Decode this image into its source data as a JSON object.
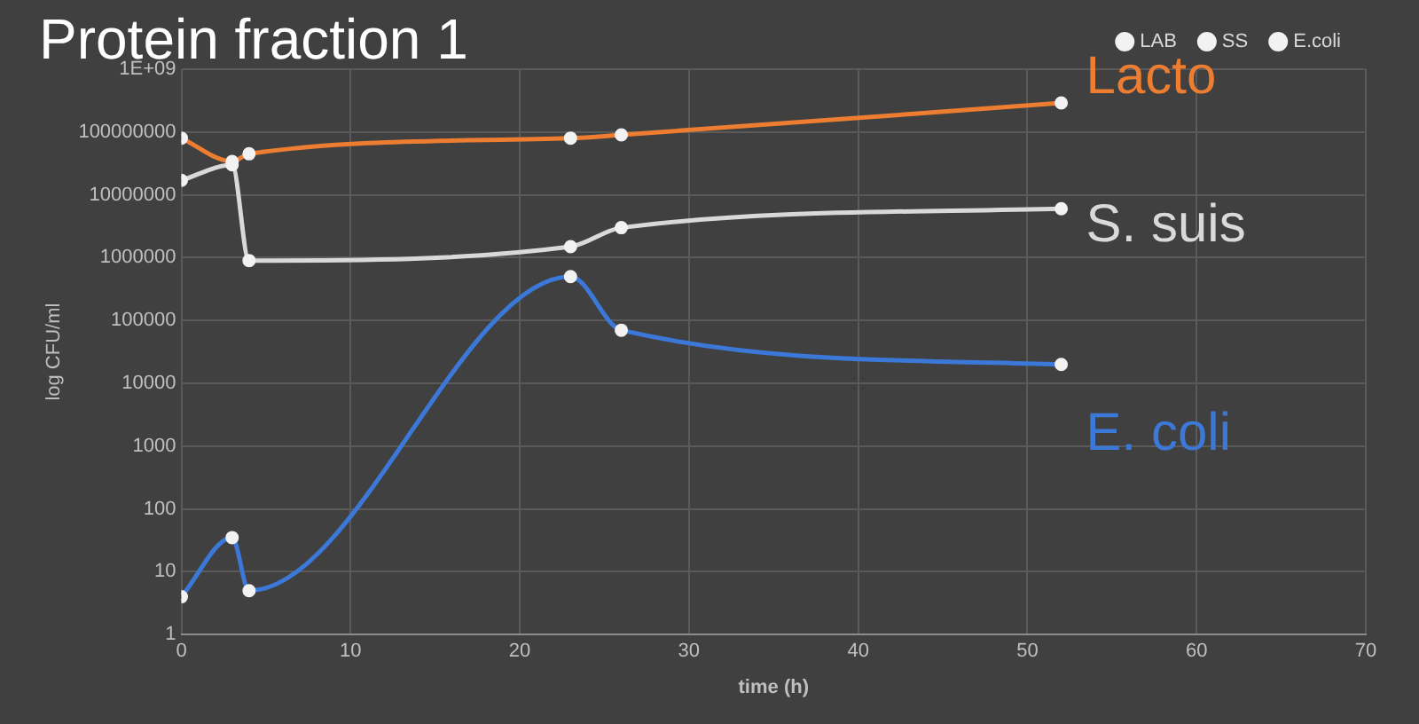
{
  "chart_data": {
    "type": "line",
    "title": "Protein fraction 1",
    "xlabel": "time (h)",
    "ylabel": "log CFU/ml",
    "x": [
      0,
      3,
      4,
      23,
      26,
      52
    ],
    "series": [
      {
        "name": "E.coli",
        "color": "#3c78d8",
        "values": [
          4,
          35,
          5,
          500000,
          70000,
          20000
        ]
      },
      {
        "name": "SS",
        "color": "#d9d9d9",
        "values": [
          17000000,
          30000000,
          900000,
          1500000,
          3000000,
          6000000
        ]
      },
      {
        "name": "LAB",
        "color": "#ed7d31",
        "values": [
          80000000,
          34000000,
          45000000,
          80000000,
          90000000,
          290000000
        ]
      }
    ],
    "log": "y",
    "xlim": [
      0,
      70
    ],
    "xticks": [
      0,
      10,
      20,
      30,
      40,
      50,
      60,
      70
    ],
    "ylim": [
      1,
      1000000000
    ],
    "yticks": [
      1,
      10,
      100,
      1000,
      10000,
      100000,
      1000000,
      10000000,
      100000000,
      {
        "value": 1000000000,
        "label": "1E+09"
      }
    ],
    "grid": true,
    "legend": "top right",
    "marker": "circle",
    "line_style": "solid",
    "annotations": [
      "Lacto",
      "S. suis",
      "E. coli"
    ]
  }
}
